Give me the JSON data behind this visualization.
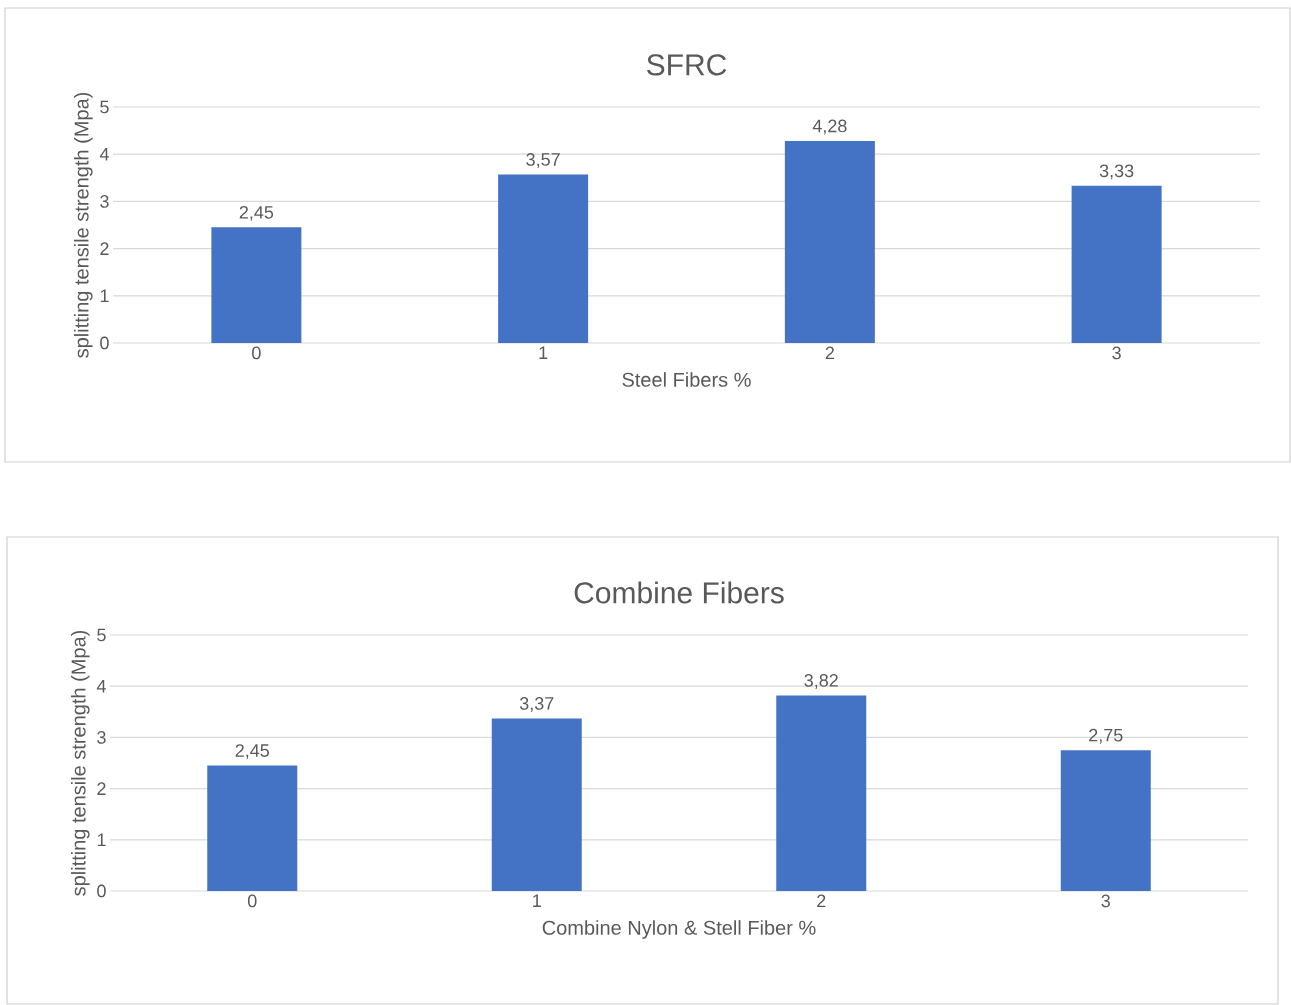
{
  "chart_data": [
    {
      "type": "bar",
      "title": "SFRC",
      "xlabel": "Steel Fibers %",
      "ylabel": "splitting tensile strength (Mpa)",
      "categories": [
        "0",
        "1",
        "2",
        "3"
      ],
      "values": [
        2.45,
        3.57,
        4.28,
        3.33
      ],
      "value_labels": [
        "2,45",
        "3,57",
        "4,28",
        "3,33"
      ],
      "color": "#4472c4",
      "ylim": [
        0,
        5
      ],
      "yticks": [
        0,
        1,
        2,
        3,
        4,
        5
      ],
      "grid": "y"
    },
    {
      "type": "bar",
      "title": "Combine Fibers",
      "xlabel": "Combine Nylon & Stell Fiber %",
      "ylabel": "splitting tensile strength (Mpa)",
      "categories": [
        "0",
        "1",
        "2",
        "3"
      ],
      "values": [
        2.45,
        3.37,
        3.82,
        2.75
      ],
      "value_labels": [
        "2,45",
        "3,37",
        "3,82",
        "2,75"
      ],
      "color": "#4472c4",
      "ylim": [
        0,
        5
      ],
      "yticks": [
        0,
        1,
        2,
        3,
        4,
        5
      ],
      "grid": "y"
    }
  ]
}
